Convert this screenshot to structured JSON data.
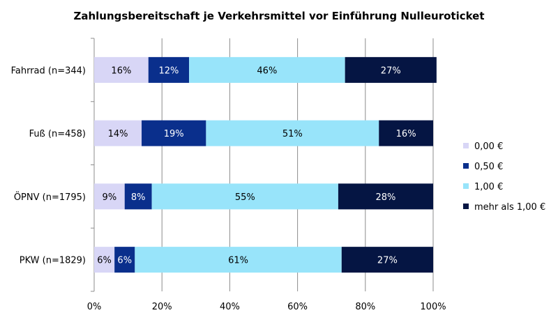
{
  "chart_data": {
    "type": "bar",
    "orientation": "horizontal",
    "stacked": true,
    "title": "Zahlungsbereitschaft je Verkehrsmittel vor Einführung Nulleuroticket",
    "categories": [
      "Fahrrad (n=344)",
      "Fuß (n=458)",
      "ÖPNV (n=1795)",
      "PKW (n=1829)"
    ],
    "series": [
      {
        "name": "0,00 €",
        "color": "#d8d6f6",
        "label_color": "#000000",
        "values": [
          16,
          14,
          9,
          6
        ]
      },
      {
        "name": "0,50 €",
        "color": "#0a2f8c",
        "label_color": "#ffffff",
        "values": [
          12,
          19,
          8,
          6
        ]
      },
      {
        "name": "1,00 €",
        "color": "#98e4fa",
        "label_color": "#000000",
        "values": [
          46,
          51,
          55,
          61
        ]
      },
      {
        "name": "mehr als 1,00 €",
        "color": "#051543",
        "label_color": "#ffffff",
        "values": [
          27,
          16,
          28,
          27
        ]
      }
    ],
    "x_ticks": [
      "0%",
      "20%",
      "40%",
      "60%",
      "80%",
      "100%"
    ],
    "xlim": [
      0,
      100
    ],
    "grid": true,
    "legend_position": "right"
  }
}
